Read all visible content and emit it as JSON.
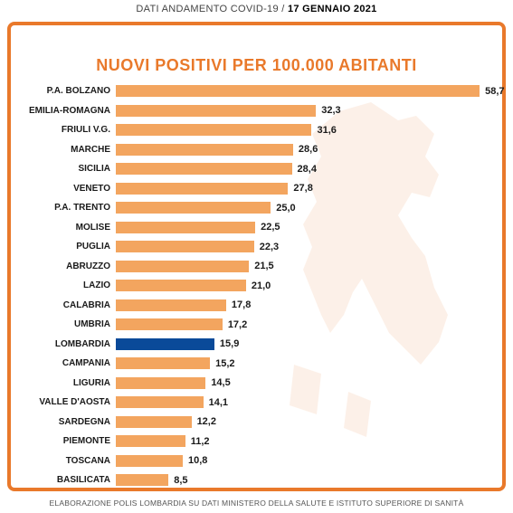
{
  "header": {
    "prefix": "DATI ANDAMENTO COVID-19 / ",
    "date": "17 GENNAIO 2021"
  },
  "title": "NUOVI POSITIVI PER 100.000 ABITANTI",
  "footer": "ELABORAZIONE POLIS LOMBARDIA SU DATI MINISTERO DELLA SALUTE E ISTITUTO SUPERIORE DI SANITÀ",
  "chart": {
    "type": "bar-horizontal",
    "max_value": 60,
    "bar_color_default": "#f3a55f",
    "bar_color_highlight": "#0a4a99",
    "background_color": "#ffffff",
    "frame_color": "#e9792b",
    "label_fontsize": 10,
    "value_fontsize": 11,
    "title_fontsize": 18,
    "title_color": "#e9792b",
    "rows": [
      {
        "label": "P.A. BOLZANO",
        "value": 58.7,
        "display": "58,7",
        "highlight": false
      },
      {
        "label": "EMILIA-ROMAGNA",
        "value": 32.3,
        "display": "32,3",
        "highlight": false
      },
      {
        "label": "FRIULI V.G.",
        "value": 31.6,
        "display": "31,6",
        "highlight": false
      },
      {
        "label": "MARCHE",
        "value": 28.6,
        "display": "28,6",
        "highlight": false
      },
      {
        "label": "SICILIA",
        "value": 28.4,
        "display": "28,4",
        "highlight": false
      },
      {
        "label": "VENETO",
        "value": 27.8,
        "display": "27,8",
        "highlight": false
      },
      {
        "label": "P.A. TRENTO",
        "value": 25.0,
        "display": "25,0",
        "highlight": false
      },
      {
        "label": "MOLISE",
        "value": 22.5,
        "display": "22,5",
        "highlight": false
      },
      {
        "label": "PUGLIA",
        "value": 22.3,
        "display": "22,3",
        "highlight": false
      },
      {
        "label": "ABRUZZO",
        "value": 21.5,
        "display": "21,5",
        "highlight": false
      },
      {
        "label": "LAZIO",
        "value": 21.0,
        "display": "21,0",
        "highlight": false
      },
      {
        "label": "CALABRIA",
        "value": 17.8,
        "display": "17,8",
        "highlight": false
      },
      {
        "label": "UMBRIA",
        "value": 17.2,
        "display": "17,2",
        "highlight": false
      },
      {
        "label": "LOMBARDIA",
        "value": 15.9,
        "display": "15,9",
        "highlight": true
      },
      {
        "label": "CAMPANIA",
        "value": 15.2,
        "display": "15,2",
        "highlight": false
      },
      {
        "label": "LIGURIA",
        "value": 14.5,
        "display": "14,5",
        "highlight": false
      },
      {
        "label": "VALLE D'AOSTA",
        "value": 14.1,
        "display": "14,1",
        "highlight": false
      },
      {
        "label": "SARDEGNA",
        "value": 12.2,
        "display": "12,2",
        "highlight": false
      },
      {
        "label": "PIEMONTE",
        "value": 11.2,
        "display": "11,2",
        "highlight": false
      },
      {
        "label": "TOSCANA",
        "value": 10.8,
        "display": "10,8",
        "highlight": false
      },
      {
        "label": "BASILICATA",
        "value": 8.5,
        "display": "8,5",
        "highlight": false
      }
    ]
  }
}
